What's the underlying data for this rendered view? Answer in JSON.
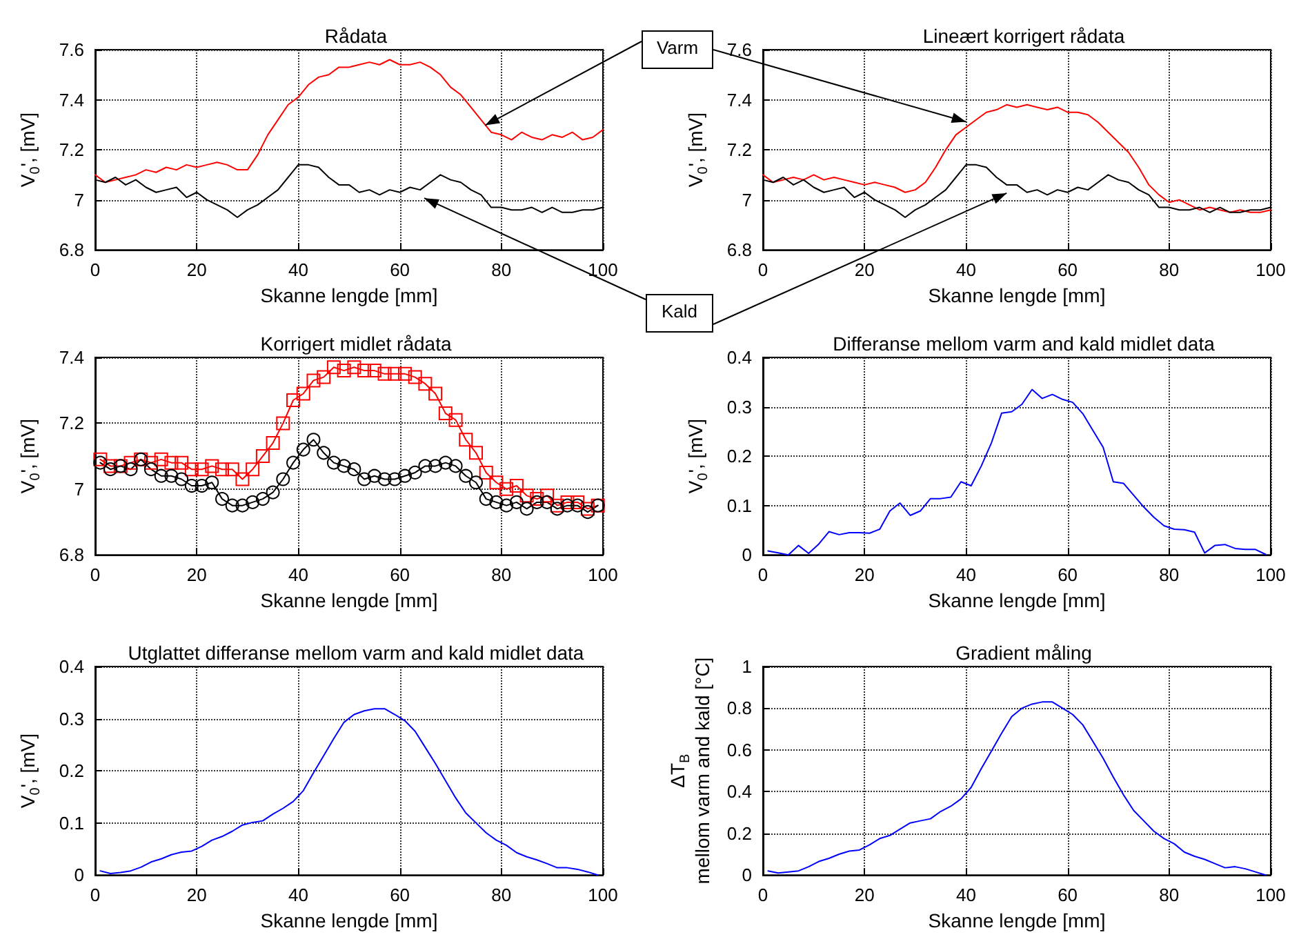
{
  "chart_data": [
    {
      "type": "line",
      "title": "Rådata",
      "xlabel": "Skanne lengde [mm]",
      "ylabel": "V$_{0}$', [mV]",
      "x": [
        0,
        2,
        4,
        6,
        8,
        10,
        12,
        14,
        16,
        18,
        20,
        22,
        24,
        26,
        28,
        30,
        32,
        34,
        36,
        38,
        40,
        42,
        44,
        46,
        48,
        50,
        52,
        54,
        56,
        58,
        60,
        62,
        64,
        66,
        68,
        70,
        72,
        74,
        76,
        78,
        80,
        82,
        84,
        86,
        88,
        90,
        92,
        94,
        96,
        98,
        100
      ],
      "xlim": [
        0,
        100
      ],
      "xticks": [
        0,
        20,
        40,
        60,
        80,
        100
      ],
      "ylim": [
        6.8,
        7.6
      ],
      "yticks": [
        6.8,
        7,
        7.2,
        7.4,
        7.6
      ],
      "grid": true,
      "series": [
        {
          "name": "Varm",
          "color": "#ff0000",
          "values": [
            7.1,
            7.07,
            7.08,
            7.09,
            7.1,
            7.12,
            7.11,
            7.13,
            7.12,
            7.14,
            7.13,
            7.14,
            7.15,
            7.14,
            7.12,
            7.12,
            7.18,
            7.26,
            7.32,
            7.38,
            7.41,
            7.46,
            7.49,
            7.5,
            7.53,
            7.53,
            7.54,
            7.55,
            7.54,
            7.56,
            7.54,
            7.54,
            7.55,
            7.53,
            7.5,
            7.45,
            7.42,
            7.37,
            7.32,
            7.27,
            7.26,
            7.24,
            7.27,
            7.25,
            7.24,
            7.26,
            7.25,
            7.27,
            7.24,
            7.25,
            7.28
          ]
        },
        {
          "name": "Kald",
          "color": "#000000",
          "values": [
            7.08,
            7.07,
            7.09,
            7.06,
            7.08,
            7.05,
            7.03,
            7.04,
            7.05,
            7.01,
            7.03,
            7.0,
            6.98,
            6.96,
            6.93,
            6.96,
            6.98,
            7.01,
            7.04,
            7.09,
            7.14,
            7.14,
            7.13,
            7.09,
            7.06,
            7.06,
            7.03,
            7.04,
            7.02,
            7.04,
            7.03,
            7.05,
            7.04,
            7.07,
            7.1,
            7.08,
            7.07,
            7.04,
            7.02,
            6.97,
            6.97,
            6.96,
            6.96,
            6.97,
            6.95,
            6.97,
            6.95,
            6.95,
            6.96,
            6.96,
            6.97
          ]
        }
      ]
    },
    {
      "type": "line",
      "title": "Lineært korrigert rådata",
      "xlabel": "Skanne lengde [mm]",
      "ylabel": "V$_{0}$', [mV]",
      "x": [
        0,
        2,
        4,
        6,
        8,
        10,
        12,
        14,
        16,
        18,
        20,
        22,
        24,
        26,
        28,
        30,
        32,
        34,
        36,
        38,
        40,
        42,
        44,
        46,
        48,
        50,
        52,
        54,
        56,
        58,
        60,
        62,
        64,
        66,
        68,
        70,
        72,
        74,
        76,
        78,
        80,
        82,
        84,
        86,
        88,
        90,
        92,
        94,
        96,
        98,
        100
      ],
      "xlim": [
        0,
        100
      ],
      "xticks": [
        0,
        20,
        40,
        60,
        80,
        100
      ],
      "ylim": [
        6.8,
        7.6
      ],
      "yticks": [
        6.8,
        7,
        7.2,
        7.4,
        7.6
      ],
      "grid": true,
      "series": [
        {
          "color": "#ff0000",
          "values": [
            7.1,
            7.07,
            7.08,
            7.09,
            7.08,
            7.1,
            7.08,
            7.09,
            7.08,
            7.07,
            7.06,
            7.07,
            7.06,
            7.05,
            7.03,
            7.04,
            7.07,
            7.13,
            7.2,
            7.26,
            7.29,
            7.32,
            7.35,
            7.36,
            7.38,
            7.37,
            7.38,
            7.37,
            7.36,
            7.37,
            7.35,
            7.35,
            7.34,
            7.31,
            7.27,
            7.23,
            7.19,
            7.13,
            7.06,
            7.02,
            6.99,
            7.0,
            6.98,
            6.96,
            6.97,
            6.96,
            6.95,
            6.96,
            6.95,
            6.95,
            6.96
          ]
        },
        {
          "color": "#000000",
          "values": [
            7.08,
            7.07,
            7.09,
            7.06,
            7.08,
            7.05,
            7.03,
            7.04,
            7.05,
            7.01,
            7.03,
            7.0,
            6.98,
            6.96,
            6.93,
            6.96,
            6.98,
            7.01,
            7.04,
            7.09,
            7.14,
            7.14,
            7.13,
            7.09,
            7.06,
            7.06,
            7.03,
            7.04,
            7.02,
            7.04,
            7.03,
            7.05,
            7.04,
            7.07,
            7.1,
            7.08,
            7.07,
            7.04,
            7.02,
            6.97,
            6.97,
            6.96,
            6.96,
            6.97,
            6.95,
            6.97,
            6.95,
            6.95,
            6.96,
            6.96,
            6.97
          ]
        }
      ]
    },
    {
      "type": "line",
      "title": "Korrigert midlet rådata",
      "xlabel": "Skanne lengde [mm]",
      "ylabel": "V$_{0}$', [mV]",
      "x": [
        1,
        3,
        5,
        7,
        9,
        11,
        13,
        15,
        17,
        19,
        21,
        23,
        25,
        27,
        29,
        31,
        33,
        35,
        37,
        39,
        41,
        43,
        45,
        47,
        49,
        51,
        53,
        55,
        57,
        59,
        61,
        63,
        65,
        67,
        69,
        71,
        73,
        75,
        77,
        79,
        81,
        83,
        85,
        87,
        89,
        91,
        93,
        95,
        97,
        99
      ],
      "xlim": [
        0,
        100
      ],
      "xticks": [
        0,
        20,
        40,
        60,
        80,
        100
      ],
      "ylim": [
        6.8,
        7.4
      ],
      "yticks": [
        6.8,
        7,
        7.2,
        7.4
      ],
      "grid": true,
      "series": [
        {
          "color": "#ff0000",
          "marker": "square",
          "values": [
            7.09,
            7.07,
            7.07,
            7.08,
            7.09,
            7.08,
            7.09,
            7.08,
            7.08,
            7.06,
            7.06,
            7.07,
            7.06,
            7.06,
            7.03,
            7.06,
            7.1,
            7.14,
            7.2,
            7.27,
            7.29,
            7.33,
            7.34,
            7.37,
            7.36,
            7.37,
            7.36,
            7.36,
            7.35,
            7.35,
            7.35,
            7.34,
            7.32,
            7.29,
            7.23,
            7.21,
            7.15,
            7.11,
            7.05,
            7.02,
            7.0,
            7.01,
            6.98,
            6.97,
            6.98,
            6.95,
            6.96,
            6.96,
            6.94,
            6.95
          ]
        },
        {
          "color": "#000000",
          "marker": "circle",
          "values": [
            7.08,
            7.06,
            7.07,
            7.06,
            7.09,
            7.06,
            7.04,
            7.04,
            7.03,
            7.01,
            7.01,
            7.02,
            6.97,
            6.95,
            6.95,
            6.96,
            6.97,
            6.99,
            7.03,
            7.08,
            7.12,
            7.15,
            7.11,
            7.08,
            7.07,
            7.06,
            7.03,
            7.04,
            7.03,
            7.03,
            7.04,
            7.05,
            7.07,
            7.07,
            7.08,
            7.07,
            7.04,
            7.02,
            6.97,
            6.96,
            6.95,
            6.96,
            6.94,
            6.96,
            6.96,
            6.94,
            6.95,
            6.95,
            6.93,
            6.95
          ]
        }
      ]
    },
    {
      "type": "line",
      "title": "Differanse mellom varm and kald midlet data",
      "xlabel": "Skanne lengde [mm]",
      "ylabel": "V$_{0}$', [mV]",
      "x": [
        1,
        3,
        5,
        7,
        9,
        11,
        13,
        15,
        17,
        19,
        21,
        23,
        25,
        27,
        29,
        31,
        33,
        35,
        37,
        39,
        41,
        43,
        45,
        47,
        49,
        51,
        53,
        55,
        57,
        59,
        61,
        63,
        65,
        67,
        69,
        71,
        73,
        75,
        77,
        79,
        81,
        83,
        85,
        87,
        89,
        91,
        93,
        95,
        97,
        99
      ],
      "xlim": [
        0,
        100
      ],
      "xticks": [
        0,
        20,
        40,
        60,
        80,
        100
      ],
      "ylim": [
        0,
        0.4
      ],
      "yticks": [
        0,
        0.1,
        0.2,
        0.3,
        0.4
      ],
      "grid": true,
      "series": [
        {
          "color": "#0000ff",
          "values": [
            0.008,
            0.004,
            0.0,
            0.019,
            0.003,
            0.022,
            0.047,
            0.041,
            0.045,
            0.045,
            0.044,
            0.052,
            0.089,
            0.105,
            0.08,
            0.089,
            0.114,
            0.114,
            0.117,
            0.148,
            0.14,
            0.18,
            0.227,
            0.287,
            0.29,
            0.305,
            0.335,
            0.317,
            0.325,
            0.315,
            0.309,
            0.286,
            0.252,
            0.218,
            0.148,
            0.145,
            0.121,
            0.097,
            0.076,
            0.059,
            0.052,
            0.051,
            0.046,
            0.004,
            0.019,
            0.021,
            0.013,
            0.011,
            0.011,
            0.001
          ]
        }
      ]
    },
    {
      "type": "line",
      "title": "Utglattet differanse mellom varm and kald midlet data",
      "xlabel": "Skanne lengde [mm]",
      "ylabel": "V$_{0}$', [mV]",
      "x": [
        1,
        3,
        5,
        7,
        9,
        11,
        13,
        15,
        17,
        19,
        21,
        23,
        25,
        27,
        29,
        31,
        33,
        35,
        37,
        39,
        41,
        43,
        45,
        47,
        49,
        51,
        53,
        55,
        57,
        59,
        61,
        63,
        65,
        67,
        69,
        71,
        73,
        75,
        77,
        79,
        81,
        83,
        85,
        87,
        89,
        91,
        93,
        95,
        97,
        99
      ],
      "xlim": [
        0,
        100
      ],
      "xticks": [
        0,
        20,
        40,
        60,
        80,
        100
      ],
      "ylim": [
        0,
        0.4
      ],
      "yticks": [
        0,
        0.1,
        0.2,
        0.3,
        0.4
      ],
      "grid": true,
      "series": [
        {
          "color": "#0000ff",
          "values": [
            0.008,
            0.003,
            0.005,
            0.008,
            0.015,
            0.025,
            0.031,
            0.039,
            0.044,
            0.046,
            0.055,
            0.067,
            0.074,
            0.084,
            0.096,
            0.101,
            0.104,
            0.117,
            0.128,
            0.141,
            0.162,
            0.196,
            0.229,
            0.262,
            0.293,
            0.308,
            0.315,
            0.319,
            0.319,
            0.308,
            0.296,
            0.276,
            0.245,
            0.214,
            0.181,
            0.148,
            0.119,
            0.1,
            0.081,
            0.067,
            0.057,
            0.043,
            0.035,
            0.029,
            0.022,
            0.014,
            0.014,
            0.011,
            0.006,
            0.0
          ]
        }
      ]
    },
    {
      "type": "line",
      "title": "Gradient måling",
      "xlabel": "Skanne lengde [mm]",
      "ylabel": "ΔT$_{B}$\nmellom varm and kald [°C]",
      "x": [
        1,
        3,
        5,
        7,
        9,
        11,
        13,
        15,
        17,
        19,
        21,
        23,
        25,
        27,
        29,
        31,
        33,
        35,
        37,
        39,
        41,
        43,
        45,
        47,
        49,
        51,
        53,
        55,
        57,
        59,
        61,
        63,
        65,
        67,
        69,
        71,
        73,
        75,
        77,
        79,
        81,
        83,
        85,
        87,
        89,
        91,
        93,
        95,
        97,
        99
      ],
      "xlim": [
        0,
        100
      ],
      "xticks": [
        0,
        20,
        40,
        60,
        80,
        100
      ],
      "ylim": [
        0,
        1
      ],
      "yticks": [
        0,
        0.2,
        0.4,
        0.6,
        0.8,
        1
      ],
      "grid": true,
      "series": [
        {
          "color": "#0000ff",
          "values": [
            0.02,
            0.01,
            0.015,
            0.02,
            0.04,
            0.065,
            0.08,
            0.1,
            0.115,
            0.12,
            0.145,
            0.175,
            0.19,
            0.22,
            0.25,
            0.26,
            0.27,
            0.305,
            0.33,
            0.365,
            0.42,
            0.51,
            0.595,
            0.68,
            0.76,
            0.8,
            0.82,
            0.83,
            0.83,
            0.8,
            0.77,
            0.72,
            0.64,
            0.56,
            0.47,
            0.385,
            0.31,
            0.26,
            0.21,
            0.175,
            0.15,
            0.11,
            0.09,
            0.075,
            0.055,
            0.035,
            0.04,
            0.03,
            0.015,
            0.0
          ]
        }
      ]
    }
  ]
}
